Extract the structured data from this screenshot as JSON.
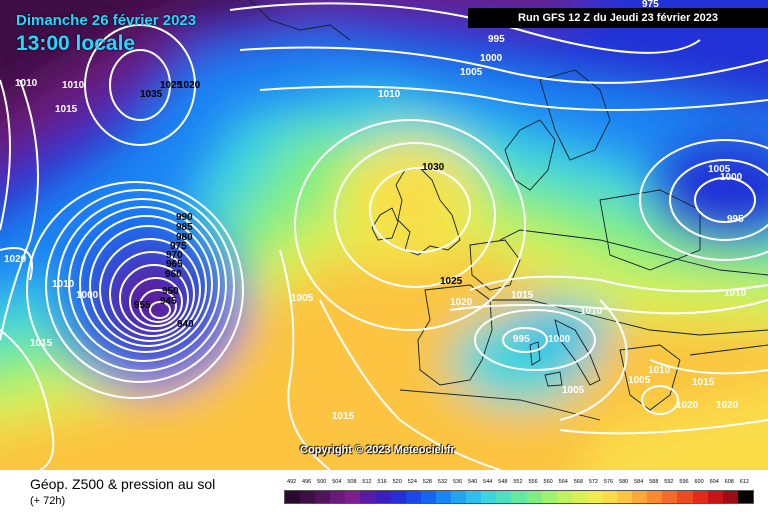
{
  "header": {
    "date": "Dimanche 26 février 2023",
    "local_time": "13:00 locale",
    "run_info": "Run GFS 12 Z du Jeudi 23 février 2023"
  },
  "copyright": "Copyright © 2023 Meteociel.fr",
  "product": {
    "title": "Géop. Z500 & pression au sol",
    "lead": "(+ 72h)"
  },
  "pressure_labels": [
    "1010",
    "1015",
    "1035",
    "1025",
    "1020",
    "995",
    "1000",
    "1005",
    "1010",
    "1010",
    "1030",
    "990",
    "985",
    "980",
    "975",
    "970",
    "965",
    "960",
    "955",
    "950",
    "945",
    "940",
    "1000",
    "1010",
    "1020",
    "1015",
    "1005",
    "1025",
    "1020",
    "1015",
    "1010",
    "995",
    "1000",
    "1005",
    "1005",
    "1000",
    "995",
    "1010",
    "1010",
    "1005",
    "1015",
    "1020",
    "1020",
    "1015",
    "975"
  ],
  "legend": {
    "values": [
      "492",
      "496",
      "500",
      "504",
      "508",
      "512",
      "516",
      "520",
      "524",
      "528",
      "532",
      "536",
      "540",
      "544",
      "548",
      "552",
      "556",
      "560",
      "564",
      "568",
      "572",
      "576",
      "580",
      "584",
      "588",
      "592",
      "596",
      "600",
      "604",
      "608",
      "612"
    ],
    "colors": [
      "#2a0a2e",
      "#3d0f45",
      "#53145e",
      "#6a1a78",
      "#7e1f8f",
      "#5a1aa8",
      "#3a1ec0",
      "#2230d6",
      "#1a48e8",
      "#1466f0",
      "#1a86f4",
      "#22a4f2",
      "#2ec0ea",
      "#3cd6dc",
      "#50e0c0",
      "#66e8a0",
      "#7eee84",
      "#9ef26e",
      "#bef25e",
      "#d8f054",
      "#eeec4e",
      "#fadc48",
      "#fcc440",
      "#fba838",
      "#f98a30",
      "#f56a28",
      "#ee4a22",
      "#e42a1c",
      "#c81418",
      "#9c0e14",
      "#000000"
    ]
  }
}
